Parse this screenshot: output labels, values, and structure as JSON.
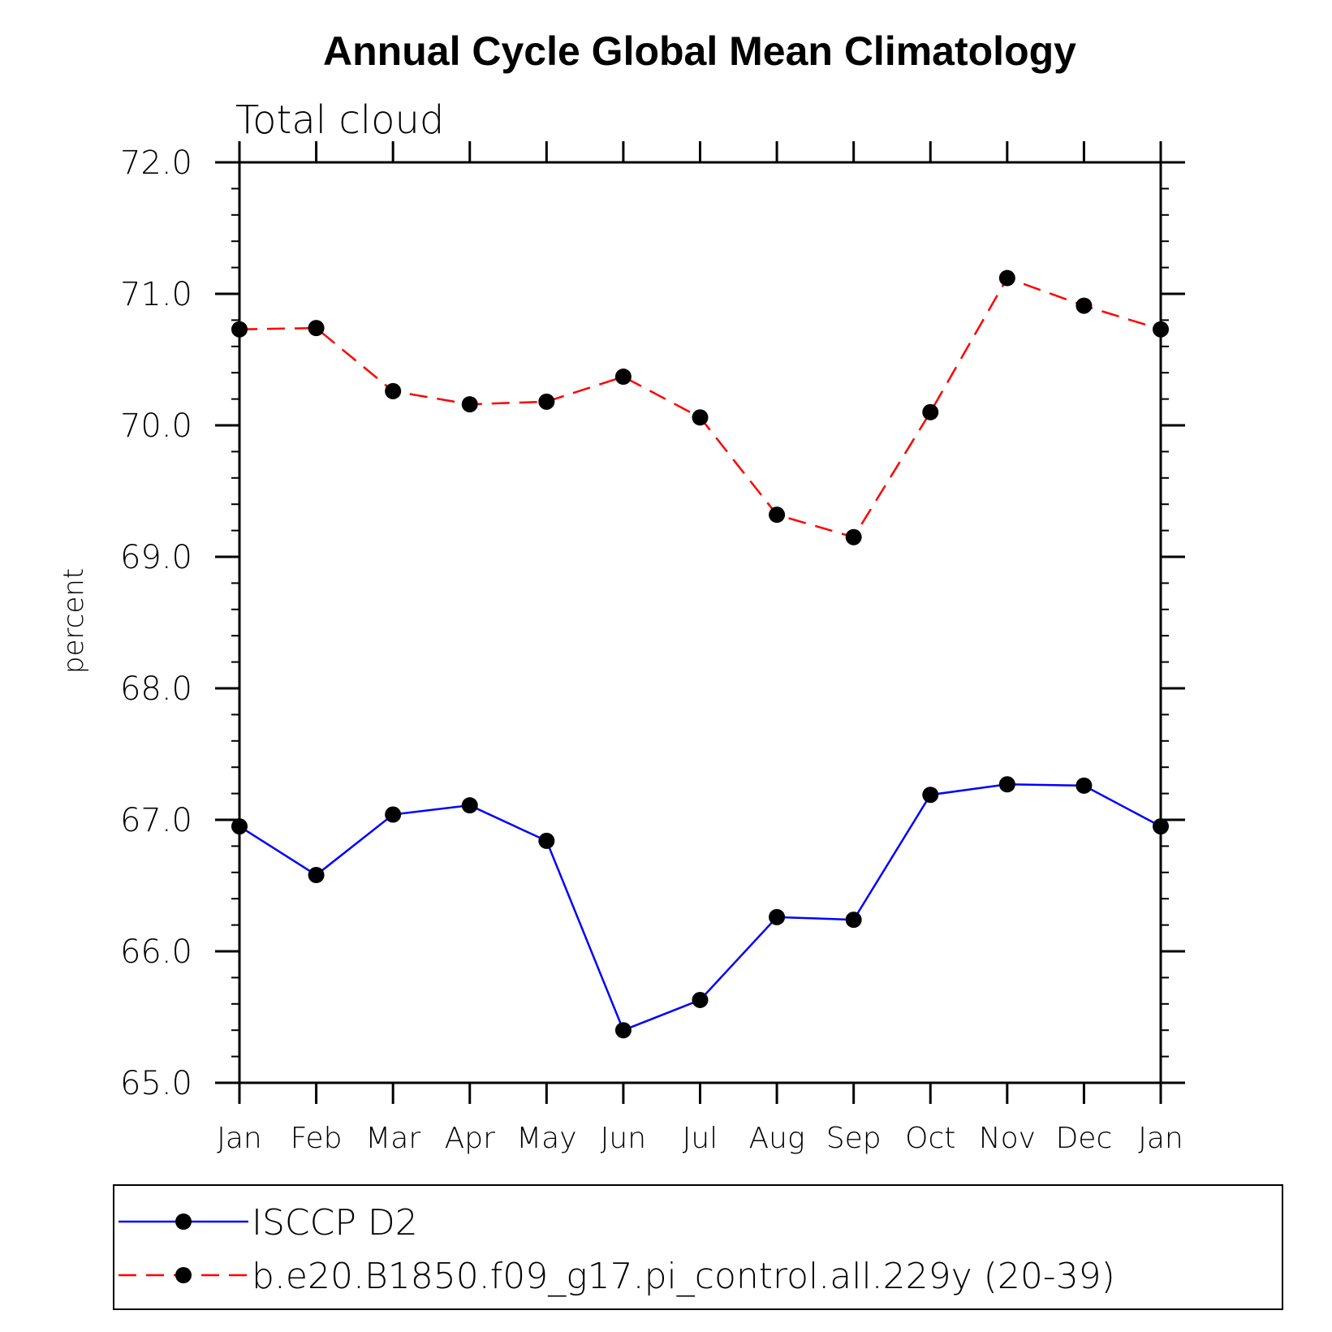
{
  "chart_data": {
    "type": "line",
    "title": "Annual Cycle Global Mean Climatology",
    "subtitle": "Total cloud",
    "ylabel": "percent",
    "xlabel": "",
    "ylim": [
      65.0,
      72.0
    ],
    "y_major_ticks": [
      65.0,
      66.0,
      67.0,
      68.0,
      69.0,
      70.0,
      71.0,
      72.0
    ],
    "y_tick_labels": [
      "65.0",
      "66.0",
      "67.0",
      "68.0",
      "69.0",
      "70.0",
      "71.0",
      "72.0"
    ],
    "y_minor_step": 0.2,
    "categories": [
      "Jan",
      "Feb",
      "Mar",
      "Apr",
      "May",
      "Jun",
      "Jul",
      "Aug",
      "Sep",
      "Oct",
      "Nov",
      "Dec",
      "Jan"
    ],
    "grid": false,
    "legend_position": "bottom",
    "series": [
      {
        "name": "ISCCP D2",
        "color": "#0000ff",
        "dash": "solid",
        "marker": "filled-circle",
        "values": [
          66.95,
          66.58,
          67.04,
          67.11,
          66.84,
          65.4,
          65.63,
          66.26,
          66.24,
          67.19,
          67.27,
          67.26,
          66.95
        ]
      },
      {
        "name": "b.e20.B1850.f09_g17.pi_control.all.229y (20-39)",
        "color": "#ff0000",
        "dash": "dashed",
        "marker": "filled-circle",
        "values": [
          70.73,
          70.74,
          70.26,
          70.16,
          70.18,
          70.37,
          70.06,
          69.32,
          69.15,
          70.1,
          71.12,
          70.91,
          70.73
        ]
      }
    ]
  }
}
